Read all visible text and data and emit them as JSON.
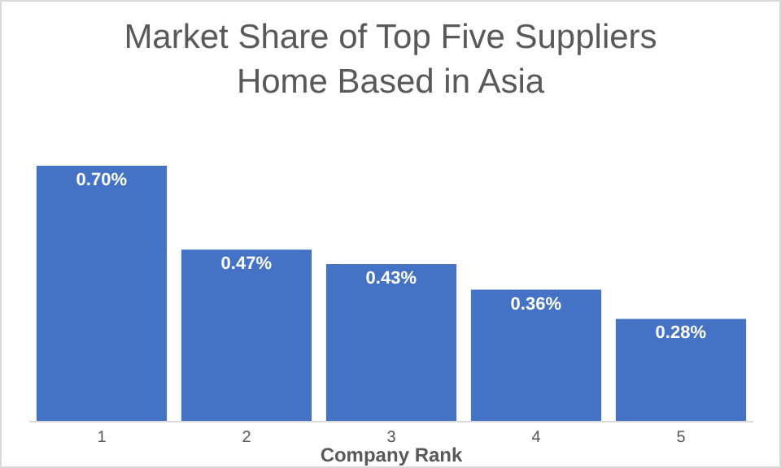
{
  "chart_data": {
    "type": "bar",
    "title": "Market Share of Top Five Suppliers\nHome Based in Asia",
    "xlabel": "Company Rank",
    "categories": [
      "1",
      "2",
      "3",
      "4",
      "5"
    ],
    "values": [
      0.7,
      0.47,
      0.43,
      0.36,
      0.28
    ],
    "value_labels": [
      "0.70%",
      "0.47%",
      "0.43%",
      "0.36%",
      "0.28%"
    ],
    "color": "#4472c4"
  }
}
